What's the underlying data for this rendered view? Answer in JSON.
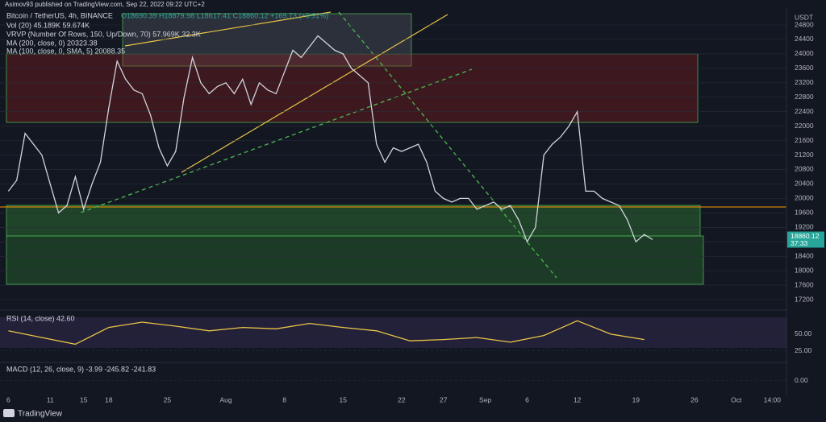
{
  "header": {
    "published": "Asimov93 published on TradingView.com, Sep 22, 2022 09:22 UTC+2",
    "symbol": "Bitcoin / TetherUS, 4h, BINANCE",
    "ohlc": "O18690.39 H18879.98 L18617.41 C18860.12 +169.73 (+0.91%)",
    "indicators": [
      "Vol (20) 45.189K 59.674K",
      "VRVP (Number Of Rows, 150, Up/Down, 70) 57.969K 32.3K",
      "MA (200, close, 0) 20323.38",
      "MA (100, close, 0, SMA, 5) 20088.35"
    ],
    "currency": "USDT",
    "countdown": "37:33"
  },
  "footer": {
    "brand": "TradingView"
  },
  "chart_data": [
    {
      "type": "line",
      "color": "#d1d4dc",
      "x": [
        0,
        1,
        2,
        4,
        5,
        6,
        7,
        8,
        9,
        10,
        11,
        12,
        13,
        14,
        15,
        16,
        17,
        18,
        19,
        20,
        21,
        22,
        23,
        24,
        25,
        26,
        27,
        28,
        29,
        30,
        31,
        32,
        33,
        34,
        35,
        36,
        37,
        38,
        39,
        40,
        41,
        42,
        43,
        44,
        45,
        46,
        47,
        48,
        49,
        50,
        51,
        52,
        53,
        54,
        55,
        56,
        57,
        58,
        59,
        60,
        61,
        62,
        63,
        64,
        65,
        66,
        67,
        68,
        69,
        70,
        71,
        72,
        73,
        74,
        75,
        76,
        77
      ],
      "values": [
        20200,
        20500,
        21800,
        21200,
        20400,
        19600,
        19800,
        20600,
        19700,
        20400,
        21000,
        22500,
        23800,
        23300,
        23000,
        22900,
        22300,
        21400,
        20900,
        21300,
        22800,
        23900,
        23200,
        22900,
        23100,
        23200,
        22900,
        23300,
        22600,
        23200,
        23000,
        22900,
        23500,
        24100,
        23900,
        24200,
        24500,
        24300,
        24100,
        24000,
        23600,
        23400,
        23200,
        21500,
        21000,
        21400,
        21300,
        21400,
        21500,
        21000,
        20200,
        20000,
        19900,
        20000,
        20000,
        19700,
        19800,
        19900,
        19700,
        19800,
        19400,
        18800,
        19200,
        21200,
        21500,
        21700,
        22000,
        22400,
        20200,
        20200,
        20000,
        19900,
        19800,
        19400,
        18800,
        19000,
        18860
      ],
      "last_price": 18860.12,
      "xlim": [
        -1,
        93
      ],
      "ylim": [
        17200,
        24800
      ],
      "yticks": [
        17200,
        17600,
        18000,
        18400,
        18800,
        19200,
        19600,
        20000,
        20400,
        20800,
        21200,
        21600,
        22000,
        22400,
        22800,
        23200,
        23600,
        24000,
        24400,
        24800
      ],
      "xticks": [
        {
          "value": 0,
          "label": "6"
        },
        {
          "value": 5,
          "label": "11"
        },
        {
          "value": 9,
          "label": "15"
        },
        {
          "value": 12,
          "label": "18"
        },
        {
          "value": 19,
          "label": "25"
        },
        {
          "value": 26,
          "label": "Aug"
        },
        {
          "value": 33,
          "label": "8"
        },
        {
          "value": 40,
          "label": "15"
        },
        {
          "value": 47,
          "label": "22"
        },
        {
          "value": 52,
          "label": "27"
        },
        {
          "value": 57,
          "label": "Sep"
        },
        {
          "value": 62,
          "label": "6"
        },
        {
          "value": 68,
          "label": "12"
        },
        {
          "value": 75,
          "label": "19"
        },
        {
          "value": 82,
          "label": "26"
        },
        {
          "value": 87,
          "label": "Oct"
        },
        {
          "value": 91.3,
          "label": "14:00"
        }
      ]
    },
    {
      "type": "line",
      "title": "RSI (14, close) 42.60",
      "color": "#e8c547",
      "x": [
        0,
        4,
        8,
        12,
        16,
        20,
        24,
        28,
        32,
        36,
        40,
        44,
        48,
        52,
        56,
        60,
        64,
        68,
        72,
        76
      ],
      "values": [
        55,
        45,
        35,
        60,
        68,
        62,
        55,
        60,
        58,
        66,
        60,
        55,
        40,
        42,
        45,
        38,
        48,
        70,
        50,
        42
      ],
      "ylim": [
        15,
        80
      ],
      "yticks": [
        {
          "value": 50,
          "label": "50.00"
        },
        {
          "value": 25,
          "label": "25.00"
        }
      ]
    },
    {
      "type": "line",
      "title": "MACD (12, 26, close, 9) -3.99 -245.82 -241.83",
      "ylim": [
        -600,
        600
      ],
      "yticks": [
        {
          "value": 0,
          "label": "0.00"
        }
      ]
    }
  ]
}
